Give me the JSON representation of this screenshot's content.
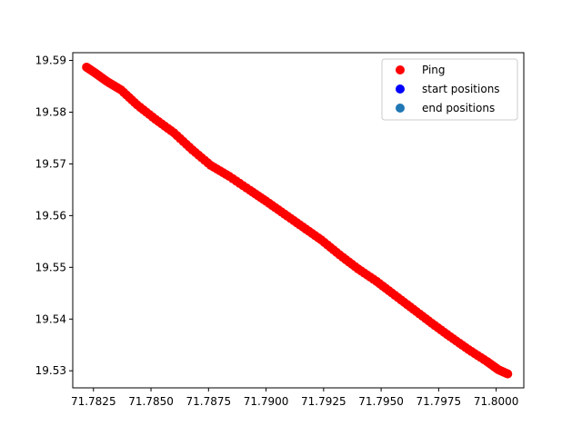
{
  "chart_data": {
    "type": "scatter",
    "title": "",
    "xlabel": "",
    "ylabel": "",
    "xlim": [
      71.7816,
      71.8012
    ],
    "ylim": [
      19.5267,
      19.5915
    ],
    "grid": false,
    "legend_position": "top-right",
    "x_ticks": [
      {
        "value": 71.7825,
        "label": "71.7825"
      },
      {
        "value": 71.785,
        "label": "71.7850"
      },
      {
        "value": 71.7875,
        "label": "71.7875"
      },
      {
        "value": 71.79,
        "label": "71.7900"
      },
      {
        "value": 71.7925,
        "label": "71.7925"
      },
      {
        "value": 71.795,
        "label": "71.7950"
      },
      {
        "value": 71.7975,
        "label": "71.7975"
      },
      {
        "value": 71.8,
        "label": "71.8000"
      }
    ],
    "y_ticks": [
      {
        "value": 19.53,
        "label": "19.53"
      },
      {
        "value": 19.54,
        "label": "19.54"
      },
      {
        "value": 19.55,
        "label": "19.55"
      },
      {
        "value": 19.56,
        "label": "19.56"
      },
      {
        "value": 19.57,
        "label": "19.57"
      },
      {
        "value": 19.58,
        "label": "19.58"
      },
      {
        "value": 19.59,
        "label": "19.59"
      }
    ],
    "series": [
      {
        "name": "Ping",
        "color": "#ff0000",
        "points": [
          [
            71.7822,
            19.5887
          ],
          [
            71.7826,
            19.5875
          ],
          [
            71.7831,
            19.5859
          ],
          [
            71.7837,
            19.5843
          ],
          [
            71.7844,
            19.5814
          ],
          [
            71.7852,
            19.5786
          ],
          [
            71.786,
            19.576
          ],
          [
            71.7868,
            19.5727
          ],
          [
            71.7876,
            19.5697
          ],
          [
            71.7884,
            19.5676
          ],
          [
            71.7893,
            19.5649
          ],
          [
            71.79,
            19.5628
          ],
          [
            71.7908,
            19.5603
          ],
          [
            71.7916,
            19.5578
          ],
          [
            71.7924,
            19.5553
          ],
          [
            71.7932,
            19.5524
          ],
          [
            71.794,
            19.5497
          ],
          [
            71.7948,
            19.5473
          ],
          [
            71.7956,
            19.5446
          ],
          [
            71.7964,
            19.5419
          ],
          [
            71.7972,
            19.5392
          ],
          [
            71.798,
            19.5366
          ],
          [
            71.7988,
            19.5341
          ],
          [
            71.7996,
            19.5318
          ],
          [
            71.8001,
            19.5302
          ],
          [
            71.8005,
            19.5294
          ]
        ],
        "dense": true
      },
      {
        "name": "start positions",
        "color": "#0000ff",
        "points": []
      },
      {
        "name": "end positions",
        "color": "#1f77b4",
        "points": []
      }
    ]
  }
}
